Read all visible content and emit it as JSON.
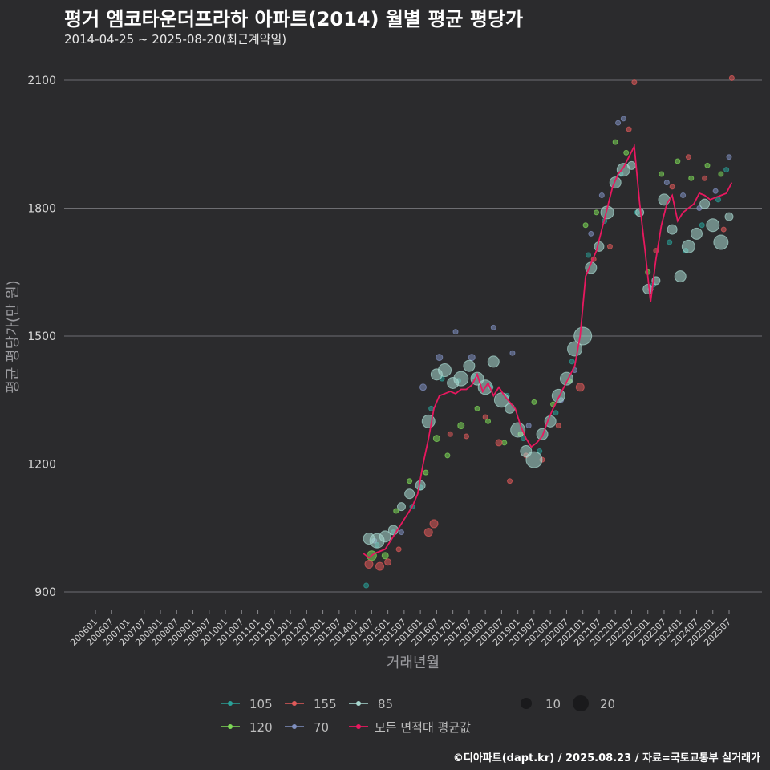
{
  "chart_data": {
    "type": "scatter",
    "title": "평거 엠코타운더프라하 아파트(2014) 월별 평균 평당가",
    "subtitle": "2014-04-25 ~ 2025-08-20(최근계약일)",
    "xlabel": "거래년월",
    "ylabel": "평균 평당가(만 원)",
    "ylim": [
      900,
      2100
    ],
    "yticks": [
      900,
      1200,
      1500,
      1800,
      2100
    ],
    "xticks": [
      "200601",
      "200607",
      "200701",
      "200707",
      "200801",
      "200807",
      "200901",
      "200907",
      "201001",
      "201007",
      "201101",
      "201107",
      "201201",
      "201207",
      "201301",
      "201307",
      "201401",
      "201407",
      "201501",
      "201507",
      "201601",
      "201607",
      "201701",
      "201707",
      "201801",
      "201807",
      "201901",
      "201907",
      "202001",
      "202007",
      "202101",
      "202107",
      "202201",
      "202207",
      "202301",
      "202307",
      "202401",
      "202407",
      "202501",
      "202507"
    ],
    "grid": true,
    "legend_position": "bottom",
    "series": [
      {
        "name": "105",
        "color": "#2aa198",
        "points": [
          [
            "2014-05",
            915
          ],
          [
            "2014-09",
            1010
          ],
          [
            "2015-03",
            1040
          ],
          [
            "2015-10",
            1100
          ],
          [
            "2016-01",
            1145
          ],
          [
            "2016-05",
            1330
          ],
          [
            "2016-09",
            1400
          ],
          [
            "2017-03",
            1395
          ],
          [
            "2017-09",
            1405
          ],
          [
            "2018-03",
            1380
          ],
          [
            "2018-09",
            1360
          ],
          [
            "2019-03",
            1260
          ],
          [
            "2019-09",
            1230
          ],
          [
            "2020-03",
            1320
          ],
          [
            "2020-09",
            1440
          ],
          [
            "2021-03",
            1690
          ],
          [
            "2021-09",
            1770
          ],
          [
            "2022-03",
            1880
          ],
          [
            "2022-09",
            1790
          ],
          [
            "2023-03",
            1620
          ],
          [
            "2023-09",
            1720
          ],
          [
            "2024-03",
            1700
          ],
          [
            "2024-09",
            1760
          ],
          [
            "2025-03",
            1820
          ],
          [
            "2025-06",
            1890
          ]
        ],
        "sizes": [
          3,
          3,
          3,
          3,
          3,
          3,
          3,
          3,
          3,
          3,
          3,
          3,
          3,
          3,
          3,
          3,
          3,
          3,
          3,
          3,
          3,
          3,
          3,
          3,
          3
        ]
      },
      {
        "name": "120",
        "color": "#7ed957",
        "points": [
          [
            "2014-07",
            985
          ],
          [
            "2014-12",
            985
          ],
          [
            "2015-04",
            1090
          ],
          [
            "2015-09",
            1160
          ],
          [
            "2016-03",
            1180
          ],
          [
            "2016-07",
            1260
          ],
          [
            "2016-11",
            1220
          ],
          [
            "2017-04",
            1290
          ],
          [
            "2017-10",
            1330
          ],
          [
            "2018-02",
            1300
          ],
          [
            "2018-08",
            1250
          ],
          [
            "2019-02",
            1270
          ],
          [
            "2019-07",
            1345
          ],
          [
            "2020-02",
            1340
          ],
          [
            "2020-08",
            1395
          ],
          [
            "2021-02",
            1760
          ],
          [
            "2021-06",
            1790
          ],
          [
            "2022-01",
            1955
          ],
          [
            "2022-05",
            1930
          ],
          [
            "2023-01",
            1650
          ],
          [
            "2023-06",
            1880
          ],
          [
            "2023-12",
            1910
          ],
          [
            "2024-05",
            1870
          ],
          [
            "2024-11",
            1900
          ],
          [
            "2025-04",
            1880
          ]
        ],
        "sizes": [
          6,
          4,
          3,
          3,
          3,
          4,
          3,
          4,
          3,
          3,
          3,
          3,
          3,
          3,
          3,
          3,
          3,
          3,
          3,
          3,
          3,
          3,
          3,
          3,
          3
        ]
      },
      {
        "name": "155",
        "color": "#e05a5a",
        "points": [
          [
            "2014-06",
            965
          ],
          [
            "2014-10",
            960
          ],
          [
            "2015-01",
            970
          ],
          [
            "2015-05",
            1000
          ],
          [
            "2016-04",
            1040
          ],
          [
            "2016-06",
            1060
          ],
          [
            "2016-12",
            1270
          ],
          [
            "2017-06",
            1265
          ],
          [
            "2018-01",
            1310
          ],
          [
            "2018-06",
            1250
          ],
          [
            "2018-10",
            1160
          ],
          [
            "2019-04",
            1220
          ],
          [
            "2019-10",
            1210
          ],
          [
            "2020-04",
            1290
          ],
          [
            "2020-12",
            1380
          ],
          [
            "2021-05",
            1680
          ],
          [
            "2021-11",
            1710
          ],
          [
            "2022-06",
            1985
          ],
          [
            "2022-08",
            2095
          ],
          [
            "2023-04",
            1700
          ],
          [
            "2023-10",
            1850
          ],
          [
            "2024-04",
            1920
          ],
          [
            "2024-10",
            1870
          ],
          [
            "2025-05",
            1750
          ],
          [
            "2025-08",
            2105
          ]
        ],
        "sizes": [
          5,
          5,
          4,
          3,
          5,
          5,
          3,
          3,
          3,
          4,
          3,
          3,
          3,
          3,
          5,
          3,
          3,
          3,
          3,
          3,
          3,
          3,
          3,
          3,
          3
        ]
      },
      {
        "name": "70",
        "color": "#7f8fbf",
        "points": [
          [
            "2014-08",
            1020
          ],
          [
            "2015-06",
            1040
          ],
          [
            "2016-02",
            1380
          ],
          [
            "2016-08",
            1450
          ],
          [
            "2017-02",
            1510
          ],
          [
            "2017-08",
            1450
          ],
          [
            "2018-04",
            1520
          ],
          [
            "2018-11",
            1460
          ],
          [
            "2019-05",
            1290
          ],
          [
            "2020-05",
            1350
          ],
          [
            "2020-10",
            1420
          ],
          [
            "2021-04",
            1740
          ],
          [
            "2021-08",
            1830
          ],
          [
            "2022-02",
            2000
          ],
          [
            "2022-04",
            2010
          ],
          [
            "2023-02",
            1610
          ],
          [
            "2023-08",
            1860
          ],
          [
            "2024-02",
            1830
          ],
          [
            "2024-08",
            1800
          ],
          [
            "2025-02",
            1840
          ],
          [
            "2025-07",
            1920
          ]
        ],
        "sizes": [
          3,
          3,
          4,
          4,
          3,
          4,
          3,
          3,
          3,
          3,
          3,
          3,
          3,
          3,
          3,
          3,
          3,
          3,
          3,
          3,
          3
        ]
      },
      {
        "name": "85",
        "color": "#a8d8d0",
        "points": [
          [
            "2014-06",
            1025
          ],
          [
            "2014-09",
            1020
          ],
          [
            "2014-12",
            1030
          ],
          [
            "2015-03",
            1045
          ],
          [
            "2015-06",
            1100
          ],
          [
            "2015-09",
            1130
          ],
          [
            "2016-01",
            1150
          ],
          [
            "2016-04",
            1300
          ],
          [
            "2016-07",
            1410
          ],
          [
            "2016-10",
            1420
          ],
          [
            "2017-01",
            1390
          ],
          [
            "2017-04",
            1400
          ],
          [
            "2017-07",
            1430
          ],
          [
            "2017-10",
            1400
          ],
          [
            "2018-01",
            1380
          ],
          [
            "2018-04",
            1440
          ],
          [
            "2018-07",
            1350
          ],
          [
            "2018-10",
            1330
          ],
          [
            "2019-01",
            1280
          ],
          [
            "2019-04",
            1230
          ],
          [
            "2019-07",
            1210
          ],
          [
            "2019-10",
            1270
          ],
          [
            "2020-01",
            1300
          ],
          [
            "2020-04",
            1360
          ],
          [
            "2020-07",
            1400
          ],
          [
            "2020-10",
            1470
          ],
          [
            "2021-01",
            1500
          ],
          [
            "2021-04",
            1660
          ],
          [
            "2021-07",
            1710
          ],
          [
            "2021-10",
            1790
          ],
          [
            "2022-01",
            1860
          ],
          [
            "2022-04",
            1890
          ],
          [
            "2022-07",
            1900
          ],
          [
            "2022-10",
            1790
          ],
          [
            "2023-01",
            1610
          ],
          [
            "2023-04",
            1630
          ],
          [
            "2023-07",
            1820
          ],
          [
            "2023-10",
            1750
          ],
          [
            "2024-01",
            1640
          ],
          [
            "2024-04",
            1710
          ],
          [
            "2024-07",
            1740
          ],
          [
            "2024-10",
            1810
          ],
          [
            "2025-01",
            1760
          ],
          [
            "2025-04",
            1720
          ],
          [
            "2025-07",
            1780
          ]
        ],
        "sizes": [
          7,
          9,
          7,
          6,
          5,
          6,
          6,
          8,
          7,
          8,
          7,
          9,
          7,
          8,
          9,
          7,
          9,
          6,
          9,
          7,
          10,
          7,
          7,
          8,
          8,
          9,
          11,
          7,
          6,
          8,
          7,
          8,
          5,
          5,
          6,
          5,
          7,
          6,
          7,
          8,
          7,
          6,
          8,
          9,
          5
        ]
      }
    ],
    "mean_series": {
      "name": "모든 면적대 평균값",
      "color": "#e8185f",
      "points": [
        [
          "2014-04",
          990
        ],
        [
          "2014-06",
          980
        ],
        [
          "2014-08",
          990
        ],
        [
          "2014-10",
          995
        ],
        [
          "2014-12",
          1000
        ],
        [
          "2015-02",
          1020
        ],
        [
          "2015-04",
          1040
        ],
        [
          "2015-06",
          1060
        ],
        [
          "2015-08",
          1080
        ],
        [
          "2015-10",
          1100
        ],
        [
          "2015-12",
          1130
        ],
        [
          "2016-02",
          1200
        ],
        [
          "2016-04",
          1260
        ],
        [
          "2016-06",
          1330
        ],
        [
          "2016-08",
          1360
        ],
        [
          "2016-10",
          1365
        ],
        [
          "2016-12",
          1370
        ],
        [
          "2017-02",
          1365
        ],
        [
          "2017-04",
          1375
        ],
        [
          "2017-06",
          1375
        ],
        [
          "2017-08",
          1385
        ],
        [
          "2017-10",
          1410
        ],
        [
          "2017-12",
          1370
        ],
        [
          "2018-02",
          1390
        ],
        [
          "2018-04",
          1360
        ],
        [
          "2018-06",
          1380
        ],
        [
          "2018-08",
          1360
        ],
        [
          "2018-10",
          1345
        ],
        [
          "2018-12",
          1330
        ],
        [
          "2019-02",
          1290
        ],
        [
          "2019-04",
          1260
        ],
        [
          "2019-06",
          1240
        ],
        [
          "2019-08",
          1250
        ],
        [
          "2019-10",
          1265
        ],
        [
          "2019-12",
          1300
        ],
        [
          "2020-02",
          1330
        ],
        [
          "2020-04",
          1355
        ],
        [
          "2020-06",
          1380
        ],
        [
          "2020-08",
          1405
        ],
        [
          "2020-10",
          1430
        ],
        [
          "2020-12",
          1500
        ],
        [
          "2021-02",
          1640
        ],
        [
          "2021-04",
          1670
        ],
        [
          "2021-06",
          1700
        ],
        [
          "2021-08",
          1750
        ],
        [
          "2021-10",
          1800
        ],
        [
          "2021-12",
          1850
        ],
        [
          "2022-02",
          1880
        ],
        [
          "2022-04",
          1895
        ],
        [
          "2022-06",
          1920
        ],
        [
          "2022-08",
          1945
        ],
        [
          "2022-10",
          1810
        ],
        [
          "2022-12",
          1700
        ],
        [
          "2023-02",
          1580
        ],
        [
          "2023-04",
          1680
        ],
        [
          "2023-06",
          1760
        ],
        [
          "2023-08",
          1810
        ],
        [
          "2023-10",
          1830
        ],
        [
          "2023-12",
          1770
        ],
        [
          "2024-02",
          1790
        ],
        [
          "2024-04",
          1800
        ],
        [
          "2024-06",
          1810
        ],
        [
          "2024-08",
          1835
        ],
        [
          "2024-10",
          1830
        ],
        [
          "2024-12",
          1820
        ],
        [
          "2025-02",
          1825
        ],
        [
          "2025-04",
          1830
        ],
        [
          "2025-06",
          1835
        ],
        [
          "2025-08",
          1860
        ]
      ]
    },
    "size_legend": [
      {
        "label": "10",
        "value": 10
      },
      {
        "label": "20",
        "value": 20
      }
    ]
  },
  "footer": "©디아파트(dapt.kr) / 2025.08.23 / 자료=국토교통부 실거래가"
}
